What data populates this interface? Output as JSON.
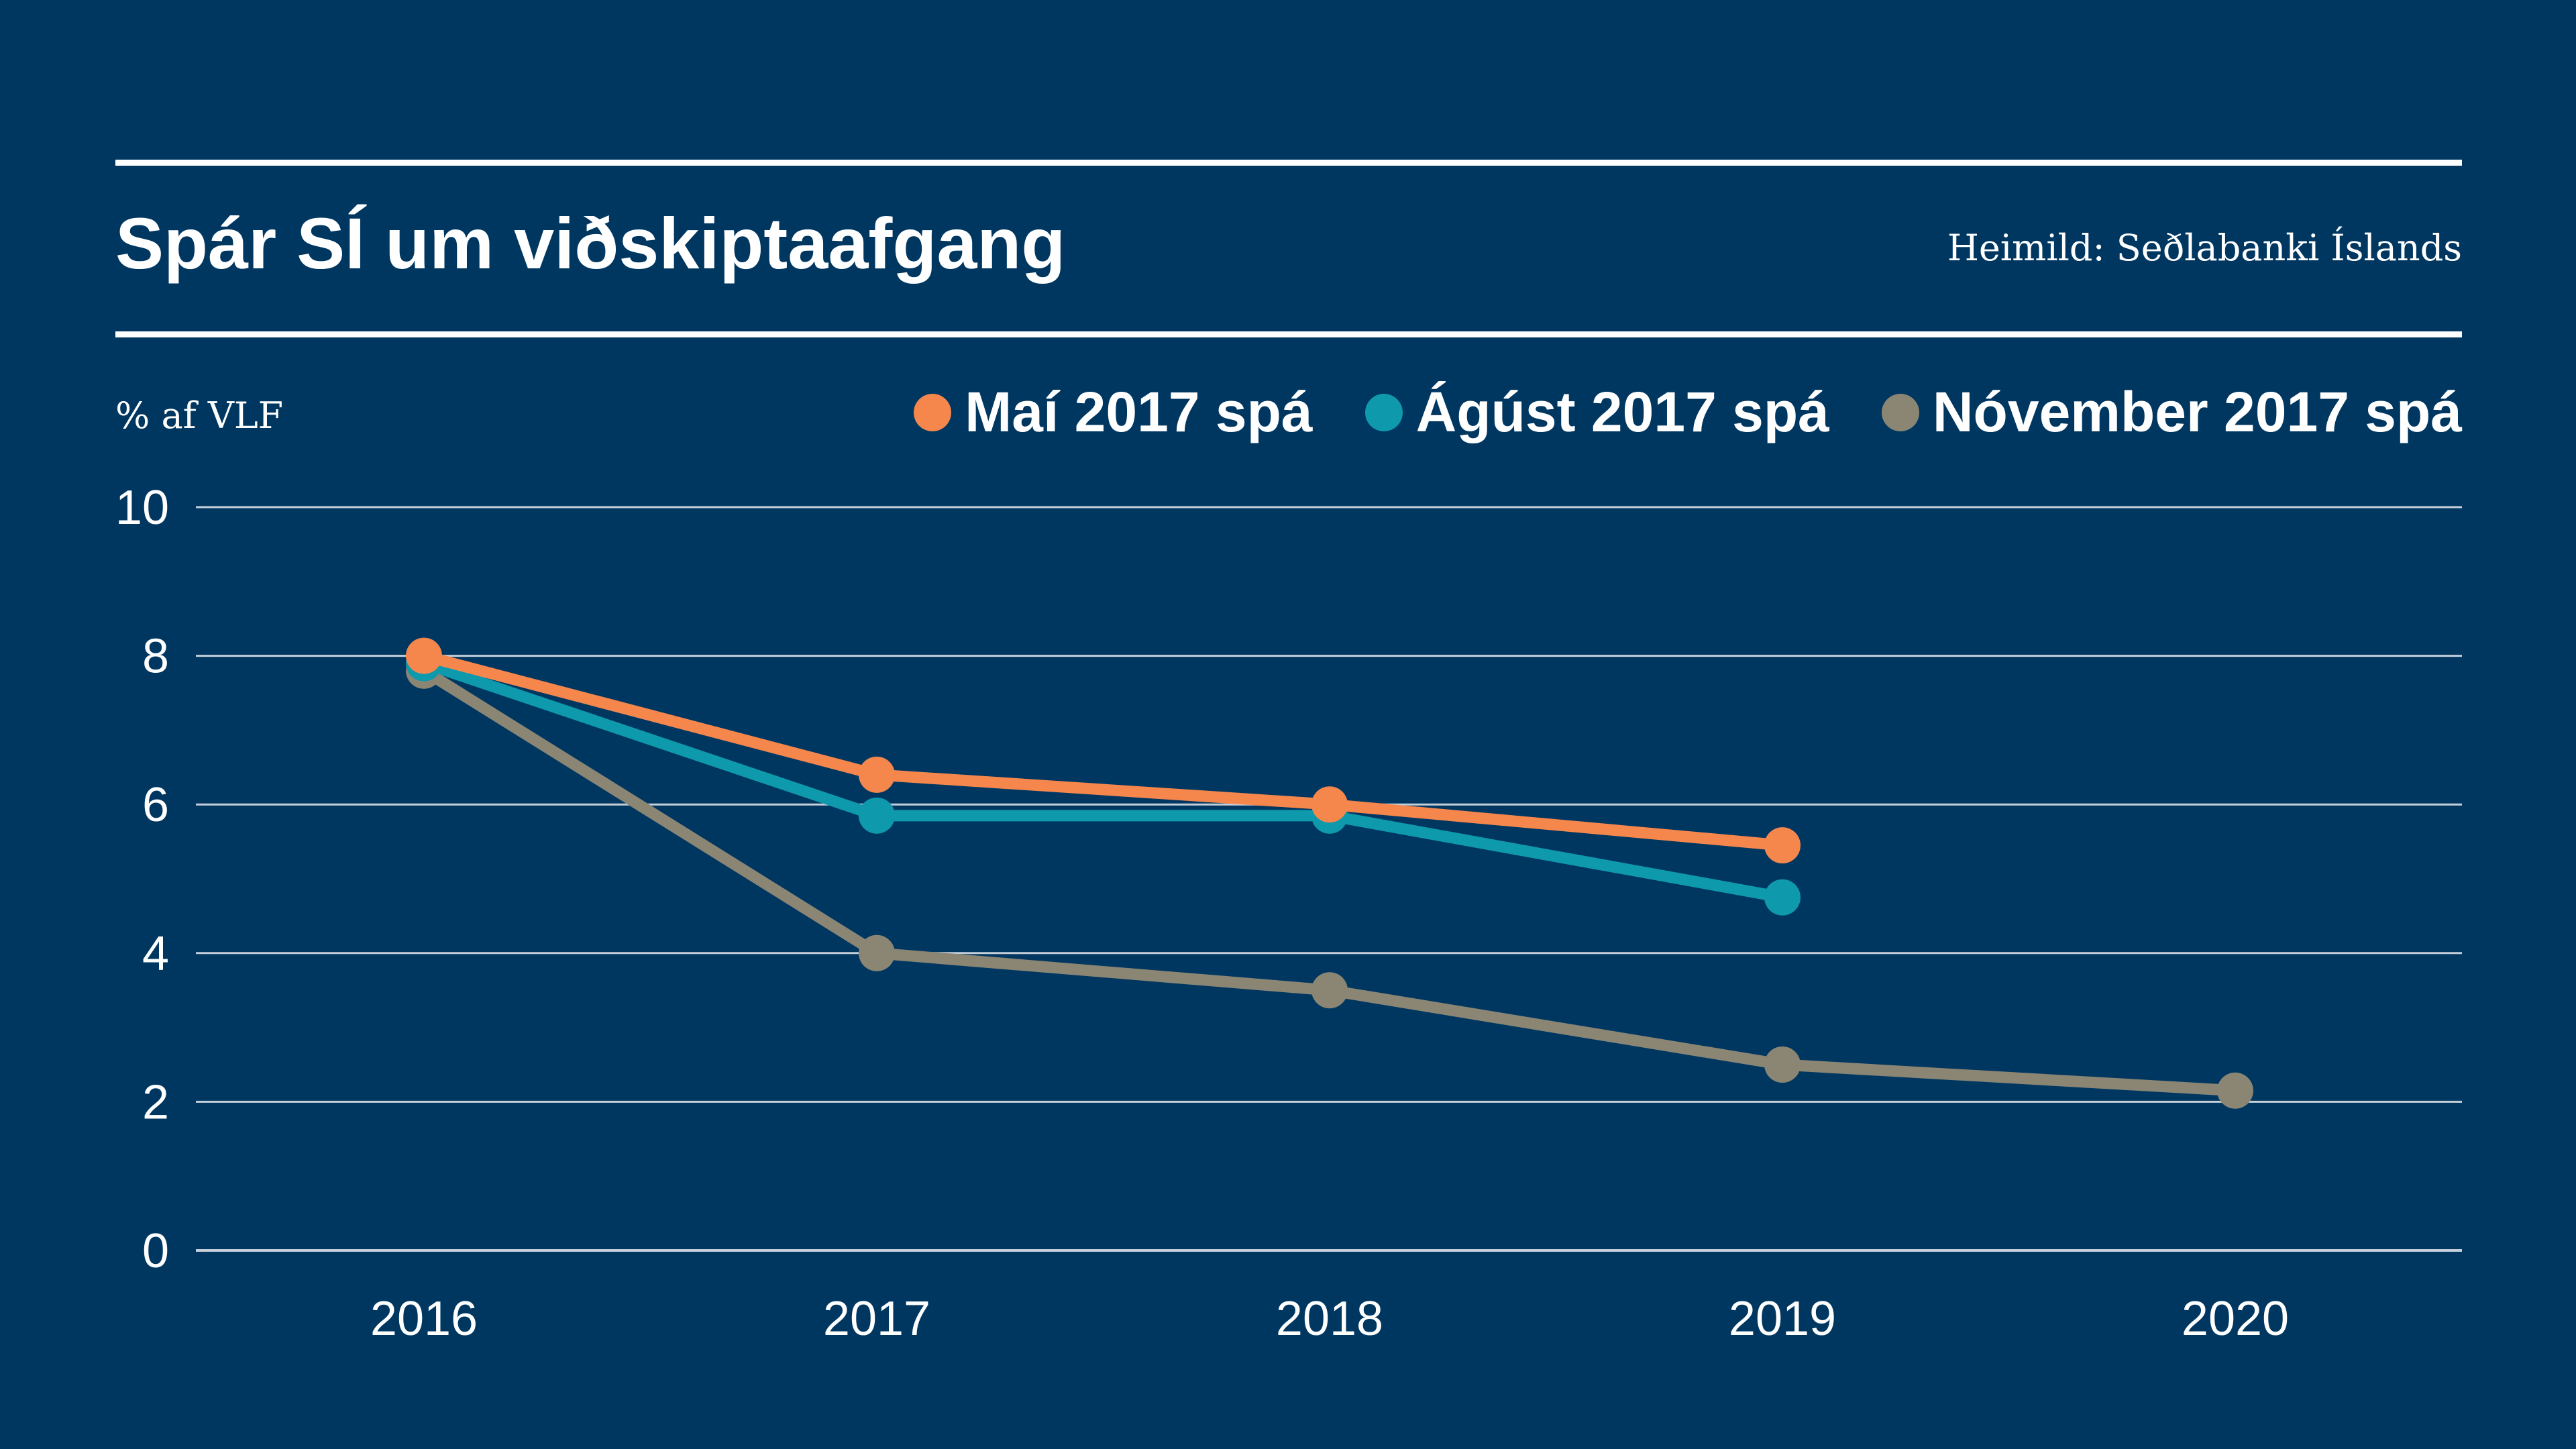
{
  "title": "Spár SÍ um viðskiptaafgang",
  "source": "Heimild: Seðlabanki Íslands",
  "chart_data": {
    "type": "line",
    "title": "Spár SÍ um viðskiptaafgang",
    "ylabel": "% af VLF",
    "xlabel": "",
    "x": [
      2016,
      2017,
      2018,
      2019,
      2020
    ],
    "ylim": [
      0,
      10
    ],
    "yticks": [
      0,
      2,
      4,
      6,
      8,
      10
    ],
    "grid": true,
    "legend_position": "top-right",
    "series": [
      {
        "name": "Maí 2017 spá",
        "color": "#f5874d",
        "values": [
          8.0,
          6.4,
          6.0,
          5.45,
          null
        ]
      },
      {
        "name": "Ágúst 2017 spá",
        "color": "#0e99ad",
        "values": [
          7.9,
          5.85,
          5.85,
          4.75,
          null
        ]
      },
      {
        "name": "Nóvember 2017 spá",
        "color": "#8b8674",
        "values": [
          7.8,
          4.0,
          3.5,
          2.5,
          2.15
        ]
      }
    ]
  },
  "style": {
    "background": "#003761",
    "text": "#ffffff",
    "gridline": "#c5cfd9"
  }
}
